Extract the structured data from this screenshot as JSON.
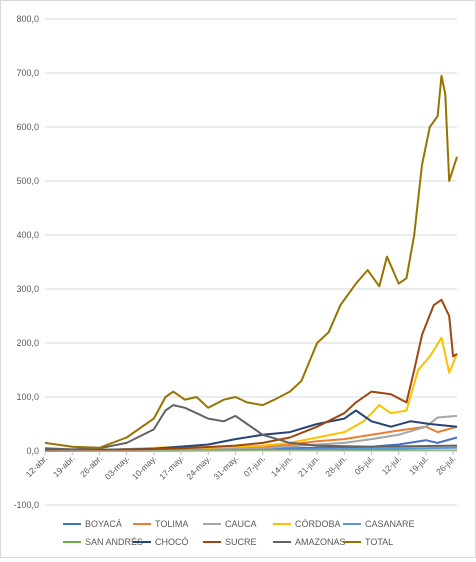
{
  "chart_data": {
    "type": "line",
    "title": "",
    "xlabel": "",
    "ylabel": "",
    "ylim": [
      -100,
      800
    ],
    "yticks": [
      -100,
      0,
      100,
      200,
      300,
      400,
      500,
      600,
      700,
      800
    ],
    "ytick_labels": [
      "-100,0",
      "0,0",
      "100,0",
      "200,0",
      "300,0",
      "400,0",
      "500,0",
      "600,0",
      "700,0",
      "800,0"
    ],
    "grid": true,
    "legend_position": "bottom",
    "x_start": "2020-04-12",
    "x_end": "2020-07-27",
    "x_ticks": [
      {
        "date": "2020-04-12",
        "label": "12-abr."
      },
      {
        "date": "2020-04-19",
        "label": "19-abr."
      },
      {
        "date": "2020-04-26",
        "label": "26-abr."
      },
      {
        "date": "2020-05-03",
        "label": "03-may."
      },
      {
        "date": "2020-05-10",
        "label": "10-may."
      },
      {
        "date": "2020-05-17",
        "label": "17-may."
      },
      {
        "date": "2020-05-24",
        "label": "24-may."
      },
      {
        "date": "2020-05-31",
        "label": "31-may."
      },
      {
        "date": "2020-06-07",
        "label": "07-jun."
      },
      {
        "date": "2020-06-14",
        "label": "14-jun."
      },
      {
        "date": "2020-06-21",
        "label": "21-jun."
      },
      {
        "date": "2020-06-28",
        "label": "28-jun."
      },
      {
        "date": "2020-07-05",
        "label": "05-jul."
      },
      {
        "date": "2020-07-12",
        "label": "12-jul."
      },
      {
        "date": "2020-07-19",
        "label": "19-jul."
      },
      {
        "date": "2020-07-26",
        "label": "26-jul."
      }
    ],
    "series": [
      {
        "name": "BOYACÁ",
        "color": "#4472c4",
        "points": [
          [
            "2020-04-12",
            0
          ],
          [
            "2020-05-01",
            1
          ],
          [
            "2020-05-20",
            3
          ],
          [
            "2020-06-07",
            4
          ],
          [
            "2020-06-21",
            6
          ],
          [
            "2020-07-05",
            8
          ],
          [
            "2020-07-12",
            12
          ],
          [
            "2020-07-19",
            20
          ],
          [
            "2020-07-22",
            15
          ],
          [
            "2020-07-27",
            25
          ]
        ]
      },
      {
        "name": "TOLIMA",
        "color": "#ed7d31",
        "points": [
          [
            "2020-04-12",
            2
          ],
          [
            "2020-05-01",
            3
          ],
          [
            "2020-05-17",
            7
          ],
          [
            "2020-05-24",
            6
          ],
          [
            "2020-06-07",
            8
          ],
          [
            "2020-06-14",
            12
          ],
          [
            "2020-06-21",
            18
          ],
          [
            "2020-06-28",
            22
          ],
          [
            "2020-07-05",
            30
          ],
          [
            "2020-07-12",
            38
          ],
          [
            "2020-07-19",
            45
          ],
          [
            "2020-07-22",
            35
          ],
          [
            "2020-07-27",
            45
          ]
        ]
      },
      {
        "name": "CAUCA",
        "color": "#a5a5a5",
        "points": [
          [
            "2020-04-12",
            1
          ],
          [
            "2020-05-01",
            2
          ],
          [
            "2020-05-17",
            4
          ],
          [
            "2020-06-07",
            5
          ],
          [
            "2020-06-21",
            12
          ],
          [
            "2020-06-28",
            15
          ],
          [
            "2020-07-05",
            22
          ],
          [
            "2020-07-12",
            30
          ],
          [
            "2020-07-19",
            45
          ],
          [
            "2020-07-22",
            62
          ],
          [
            "2020-07-27",
            65
          ]
        ]
      },
      {
        "name": "CÓRDOBA",
        "color": "#ffc000",
        "points": [
          [
            "2020-04-12",
            2
          ],
          [
            "2020-05-01",
            3
          ],
          [
            "2020-05-17",
            8
          ],
          [
            "2020-05-24",
            6
          ],
          [
            "2020-06-07",
            10
          ],
          [
            "2020-06-14",
            15
          ],
          [
            "2020-06-21",
            25
          ],
          [
            "2020-06-28",
            35
          ],
          [
            "2020-07-03",
            55
          ],
          [
            "2020-07-07",
            85
          ],
          [
            "2020-07-10",
            70
          ],
          [
            "2020-07-14",
            75
          ],
          [
            "2020-07-17",
            150
          ],
          [
            "2020-07-20",
            175
          ],
          [
            "2020-07-23",
            210
          ],
          [
            "2020-07-25",
            145
          ],
          [
            "2020-07-27",
            180
          ]
        ]
      },
      {
        "name": "CASANARE",
        "color": "#5b9bd5",
        "points": [
          [
            "2020-04-12",
            0
          ],
          [
            "2020-05-10",
            1
          ],
          [
            "2020-06-07",
            2
          ],
          [
            "2020-07-05",
            4
          ],
          [
            "2020-07-27",
            6
          ]
        ]
      },
      {
        "name": "SAN ANDRÉS",
        "color": "#70ad47",
        "points": [
          [
            "2020-04-12",
            0
          ],
          [
            "2020-05-10",
            0
          ],
          [
            "2020-06-07",
            1
          ],
          [
            "2020-07-05",
            1
          ],
          [
            "2020-07-27",
            1
          ]
        ]
      },
      {
        "name": "CHOCÓ",
        "color": "#264478",
        "points": [
          [
            "2020-04-12",
            3
          ],
          [
            "2020-04-26",
            2
          ],
          [
            "2020-05-10",
            4
          ],
          [
            "2020-05-24",
            12
          ],
          [
            "2020-05-31",
            22
          ],
          [
            "2020-06-07",
            30
          ],
          [
            "2020-06-14",
            35
          ],
          [
            "2020-06-21",
            50
          ],
          [
            "2020-06-28",
            60
          ],
          [
            "2020-07-01",
            75
          ],
          [
            "2020-07-05",
            55
          ],
          [
            "2020-07-10",
            45
          ],
          [
            "2020-07-15",
            55
          ],
          [
            "2020-07-20",
            50
          ],
          [
            "2020-07-27",
            45
          ]
        ]
      },
      {
        "name": "SUCRE",
        "color": "#9e480e",
        "points": [
          [
            "2020-04-12",
            0
          ],
          [
            "2020-05-03",
            2
          ],
          [
            "2020-05-17",
            5
          ],
          [
            "2020-05-31",
            10
          ],
          [
            "2020-06-07",
            15
          ],
          [
            "2020-06-14",
            25
          ],
          [
            "2020-06-21",
            45
          ],
          [
            "2020-06-28",
            70
          ],
          [
            "2020-07-01",
            90
          ],
          [
            "2020-07-05",
            110
          ],
          [
            "2020-07-10",
            105
          ],
          [
            "2020-07-14",
            90
          ],
          [
            "2020-07-16",
            150
          ],
          [
            "2020-07-18",
            215
          ],
          [
            "2020-07-21",
            270
          ],
          [
            "2020-07-23",
            280
          ],
          [
            "2020-07-25",
            250
          ],
          [
            "2020-07-26",
            175
          ],
          [
            "2020-07-27",
            180
          ]
        ]
      },
      {
        "name": "AMAZONAS",
        "color": "#636363",
        "points": [
          [
            "2020-04-12",
            5
          ],
          [
            "2020-04-19",
            3
          ],
          [
            "2020-04-26",
            5
          ],
          [
            "2020-05-03",
            15
          ],
          [
            "2020-05-10",
            40
          ],
          [
            "2020-05-13",
            75
          ],
          [
            "2020-05-15",
            85
          ],
          [
            "2020-05-18",
            80
          ],
          [
            "2020-05-21",
            70
          ],
          [
            "2020-05-24",
            60
          ],
          [
            "2020-05-28",
            55
          ],
          [
            "2020-05-31",
            65
          ],
          [
            "2020-06-03",
            50
          ],
          [
            "2020-06-07",
            30
          ],
          [
            "2020-06-14",
            15
          ],
          [
            "2020-06-21",
            10
          ],
          [
            "2020-07-05",
            8
          ],
          [
            "2020-07-27",
            10
          ]
        ]
      },
      {
        "name": "TOTAL",
        "color": "#997300",
        "points": [
          [
            "2020-04-12",
            15
          ],
          [
            "2020-04-19",
            8
          ],
          [
            "2020-04-26",
            6
          ],
          [
            "2020-05-03",
            25
          ],
          [
            "2020-05-10",
            60
          ],
          [
            "2020-05-13",
            100
          ],
          [
            "2020-05-15",
            110
          ],
          [
            "2020-05-18",
            95
          ],
          [
            "2020-05-21",
            100
          ],
          [
            "2020-05-24",
            80
          ],
          [
            "2020-05-28",
            95
          ],
          [
            "2020-05-31",
            100
          ],
          [
            "2020-06-03",
            90
          ],
          [
            "2020-06-07",
            85
          ],
          [
            "2020-06-10",
            95
          ],
          [
            "2020-06-14",
            110
          ],
          [
            "2020-06-17",
            130
          ],
          [
            "2020-06-21",
            200
          ],
          [
            "2020-06-24",
            220
          ],
          [
            "2020-06-27",
            270
          ],
          [
            "2020-07-01",
            310
          ],
          [
            "2020-07-04",
            335
          ],
          [
            "2020-07-07",
            305
          ],
          [
            "2020-07-09",
            360
          ],
          [
            "2020-07-12",
            310
          ],
          [
            "2020-07-14",
            320
          ],
          [
            "2020-07-16",
            400
          ],
          [
            "2020-07-18",
            530
          ],
          [
            "2020-07-20",
            600
          ],
          [
            "2020-07-22",
            620
          ],
          [
            "2020-07-23",
            695
          ],
          [
            "2020-07-24",
            660
          ],
          [
            "2020-07-25",
            500
          ],
          [
            "2020-07-27",
            545
          ]
        ]
      }
    ]
  }
}
